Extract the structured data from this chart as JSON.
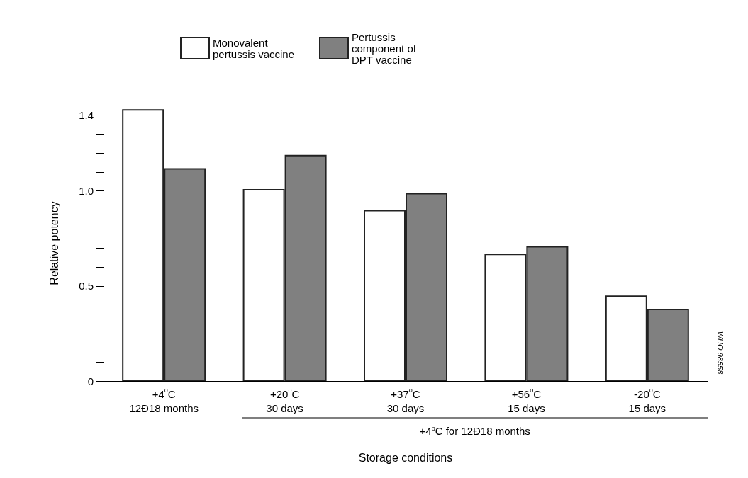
{
  "chart_data": {
    "type": "bar",
    "xlabel": "Storage conditions",
    "ylabel": "Relative potency",
    "categories": [
      "+4$^{o}$C\n12Ð18 months",
      "+20$^{o}$C\n30 days",
      "+37$^{o}$C\n30 days",
      "+56$^{o}$C\n15 days",
      "-20$^{o}$C\n15 days"
    ],
    "series": [
      {
        "name": "Monovalent pertussis vaccine",
        "color": "#ffffff",
        "values": [
          1.43,
          1.01,
          0.9,
          0.67,
          0.45
        ]
      },
      {
        "name": "Pertussis component of DPT vaccine",
        "color": "#808080",
        "values": [
          1.12,
          1.19,
          0.99,
          0.71,
          0.38
        ]
      }
    ],
    "ylim": [
      0,
      1.45
    ],
    "yticks": [
      0,
      {
        "value": 0.1,
        "label": null
      },
      {
        "value": 0.2,
        "label": null
      },
      {
        "value": 0.3,
        "label": null
      },
      {
        "value": 0.4,
        "label": null
      },
      0.5,
      {
        "value": 0.6,
        "label": null
      },
      {
        "value": 0.7,
        "label": null
      },
      {
        "value": 0.8,
        "label": null
      },
      {
        "value": 0.9,
        "label": null
      },
      {
        "value": 1.0,
        "label": "1.0"
      },
      {
        "value": 1.1,
        "label": null
      },
      {
        "value": 1.2,
        "label": null
      },
      {
        "value": 1.3,
        "label": null
      },
      1.4
    ],
    "annotations": [
      "+4$^{o}$C for 12Ð18 months",
      "WHO 98558"
    ],
    "legend": "top",
    "grid": false
  }
}
